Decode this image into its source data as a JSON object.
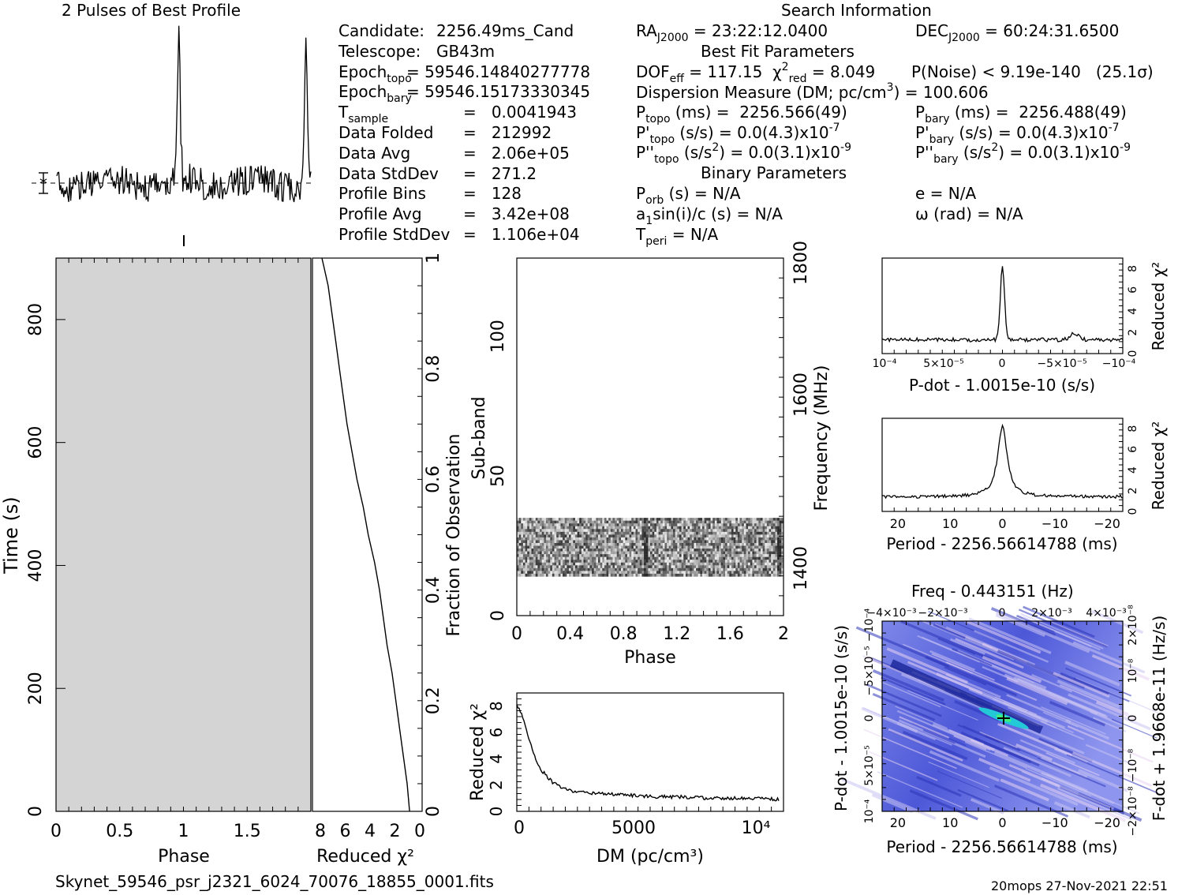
{
  "titles": {
    "profile": "2 Pulses of Best Profile",
    "search": "Search Information",
    "best_fit": "Best Fit Parameters",
    "binary": "Binary Parameters",
    "freq": "Freq - 0.443151 (Hz)"
  },
  "info_left": [
    {
      "label": "Candidate:",
      "value": "2256.49ms_Cand"
    },
    {
      "label": "Telescope:",
      "value": "GB43m"
    },
    {
      "label": "Epoch",
      "sub": "topo",
      "value": "= 59546.14840277778"
    },
    {
      "label": "Epoch",
      "sub": "bary",
      "value": "= 59546.15173330345"
    },
    {
      "label": "T",
      "sub": "sample",
      "value": "=   0.0041943"
    },
    {
      "label": "Data Folded",
      "value": "=   212992"
    },
    {
      "label": "Data Avg",
      "value": "=   2.06e+05"
    },
    {
      "label": "Data StdDev",
      "value": "=   271.2"
    },
    {
      "label": "Profile Bins",
      "value": "=   128"
    },
    {
      "label": "Profile Avg",
      "value": "=   3.42e+08"
    },
    {
      "label": "Profile StdDev",
      "value": "=   1.106e+04"
    }
  ],
  "info_mid": {
    "ra_label": "RA",
    "ra_sub": "J2000",
    "ra_value": "= 23:22:12.0400",
    "dec_label": "DEC",
    "dec_sub": "J2000",
    "dec_value": "= 60:24:31.6500",
    "dof": "DOF",
    "dof_sub": "eff",
    "dof_value": "= 117.15",
    "chi": "χ",
    "chi_sup": "2",
    "chi_sub": "red",
    "chi_value": "= 8.049",
    "pnoise": "P(Noise) < 9.19e-140   (25.1σ)",
    "dm": "Dispersion Measure (DM; pc/cm",
    "dm_sup": "3",
    "dm_value": ") = 100.606",
    "ptopo": "P",
    "ptopo_sub": "topo",
    "ptopo_value": " (ms) =  2256.566(49)",
    "pbary": "P",
    "pbary_sub": "bary",
    "pbary_value": " (ms) =  2256.488(49)",
    "pdtopo": "P'",
    "pdtopo_sub": "topo",
    "pdtopo_value": " (s/s) = 0.0(4.3)x10",
    "pdtopo_exp": "-7",
    "pdbary": "P'",
    "pdbary_sub": "bary",
    "pdbary_value": " (s/s) = 0.0(4.3)x10",
    "pdbary_exp": "-7",
    "pddtopo": "P''",
    "pddtopo_sub": "topo",
    "pddtopo_value": " (s/s",
    "pddtopo_sup": "2",
    "pddtopo_value2": ") = 0.0(3.1)x10",
    "pddtopo_exp": "-9",
    "pddbary": "P''",
    "pddbary_sub": "bary",
    "pddbary_value": " (s/s",
    "pddbary_sup": "2",
    "pddbary_value2": ") = 0.0(3.1)x10",
    "pddbary_exp": "-9",
    "porb": "P",
    "porb_sub": "orb",
    "porb_value": " (s) = N/A",
    "e": "e = N/A",
    "a1": "a",
    "a1_sub": "1",
    "a1_value": "sin(i)/c (s) = N/A",
    "omega": "ω (rad) = N/A",
    "tperi": "T",
    "tperi_sub": "peri",
    "tperi_value": " = N/A"
  },
  "footer": {
    "filename": "Skynet_59546_psr_j2321_6024_70076_18855_0001.fits",
    "stamp": "20mops 27-Nov-2021 22:51"
  },
  "chart_data": [
    {
      "type": "line",
      "name": "profile",
      "title": "2 Pulses of Best Profile",
      "x_range": [
        0,
        2
      ],
      "description_peaks_phase": [
        0.96,
        1.96
      ]
    },
    {
      "type": "heatmap",
      "name": "time-phase",
      "xlabel": "Phase",
      "ylabel": "Time (s)",
      "xlim": [
        0,
        2
      ],
      "ylim": [
        0,
        900
      ],
      "x_ticks": [
        "0",
        "0.5",
        "1",
        "1.5"
      ],
      "y_ticks": [
        "0",
        "200",
        "400",
        "600",
        "800"
      ]
    },
    {
      "type": "line",
      "name": "cumulative-chi2",
      "xlabel": "Reduced χ²",
      "ylabel": "Fraction of Observation",
      "x_ticks": [
        "8",
        "6",
        "4",
        "2",
        "0"
      ],
      "y_ticks": [
        "0",
        "0.2",
        "0.4",
        "0.6",
        "0.8",
        "1"
      ],
      "x": [
        1.0,
        1.2,
        1.5,
        1.8,
        2.1,
        2.4,
        2.8,
        3.1,
        3.4,
        3.8,
        4.3,
        4.7,
        5.2,
        5.6,
        6.0,
        6.3,
        6.6,
        6.9,
        7.2,
        7.5,
        7.8,
        8.0
      ],
      "y": [
        0.0,
        0.05,
        0.1,
        0.15,
        0.2,
        0.25,
        0.3,
        0.35,
        0.4,
        0.45,
        0.5,
        0.55,
        0.6,
        0.65,
        0.7,
        0.75,
        0.8,
        0.85,
        0.9,
        0.95,
        0.98,
        1.0
      ]
    },
    {
      "type": "heatmap",
      "name": "subband-phase",
      "xlabel": "Phase",
      "ylabel": "Sub-band",
      "ylabel2": "Frequency (MHz)",
      "xlim": [
        0,
        2
      ],
      "ylim": [
        0,
        128
      ],
      "x_ticks": [
        "0",
        "0.4",
        "0.8",
        "1.2",
        "1.6",
        "2"
      ],
      "y_ticks": [
        "0",
        "50",
        "100"
      ],
      "y2_ticks": [
        "1400",
        "1600",
        "1800"
      ],
      "band_range": [
        14,
        35
      ]
    },
    {
      "type": "line",
      "name": "dm-chi2",
      "xlabel": "DM (pc/cm³)",
      "ylabel": "Reduced χ²",
      "x_ticks": [
        "0",
        "5000",
        "10⁴"
      ],
      "y_ticks": [
        "0",
        "2",
        "4",
        "6",
        "8"
      ],
      "x": [
        0,
        250,
        500,
        750,
        1000,
        1500,
        2000,
        2500,
        3000,
        4000,
        5000,
        6000,
        7000,
        8000,
        9000,
        10000,
        11000
      ],
      "y": [
        8.1,
        7.2,
        5.6,
        4.2,
        3.2,
        2.2,
        1.7,
        1.5,
        1.4,
        1.3,
        1.2,
        1.1,
        1.1,
        1.0,
        1.0,
        1.0,
        0.9
      ]
    },
    {
      "type": "line",
      "name": "pdot-chi2",
      "xlabel": "P-dot - 1.0015e-10 (s/s)",
      "ylabel": "Reduced χ²",
      "x_ticks": [
        "10⁻⁴",
        "5×10⁻⁵",
        "0",
        "−5×10⁻⁵",
        "−10⁻⁴"
      ],
      "y_ticks": [
        "0",
        "2",
        "4",
        "6",
        "8"
      ],
      "x": [
        0.0001,
        5e-05,
        1e-05,
        2e-06,
        0,
        -2e-06,
        -1e-05,
        -3e-05,
        -6e-05,
        -0.0001
      ],
      "y": [
        1.3,
        1.4,
        1.5,
        2.5,
        8.2,
        2.4,
        1.4,
        1.3,
        1.2,
        1.3
      ]
    },
    {
      "type": "line",
      "name": "period-chi2",
      "xlabel": "Period - 2256.56614788 (ms)",
      "ylabel": "Reduced χ²",
      "x_ticks": [
        "20",
        "10",
        "0",
        "−10",
        "−20"
      ],
      "y_ticks": [
        "0",
        "2",
        "4",
        "6",
        "8"
      ],
      "x": [
        23,
        15,
        8,
        4,
        2,
        1,
        0,
        -1,
        -2,
        -4,
        -8,
        -15,
        -23
      ],
      "y": [
        1.5,
        1.5,
        1.6,
        2.0,
        3.2,
        5.6,
        8.2,
        5.6,
        3.2,
        2.0,
        1.5,
        1.6,
        1.3
      ]
    },
    {
      "type": "heatmap",
      "name": "period-pdot",
      "title": "Freq - 0.443151 (Hz)",
      "xlabel": "Period - 2256.56614788 (ms)",
      "ylabel": "P-dot - 1.0015e-10 (s/s)",
      "x2label": "",
      "y2label": "F-dot + 1.9668e-11 (Hz/s)",
      "x_ticks": [
        "20",
        "10",
        "0",
        "−10",
        "−20"
      ],
      "x2_ticks": [
        "−4×10⁻³",
        "−2×10⁻³",
        "0",
        "2×10⁻³",
        "4×10⁻³"
      ],
      "y_ticks": [
        "10⁻⁴",
        "5×10⁻⁵",
        "0",
        "−5×10⁻⁵",
        "−10⁻⁴"
      ],
      "y2_ticks": [
        "−2×10⁻⁸",
        "−10⁻⁸",
        "0",
        "10⁻⁸",
        "2×10⁻⁸"
      ]
    }
  ]
}
